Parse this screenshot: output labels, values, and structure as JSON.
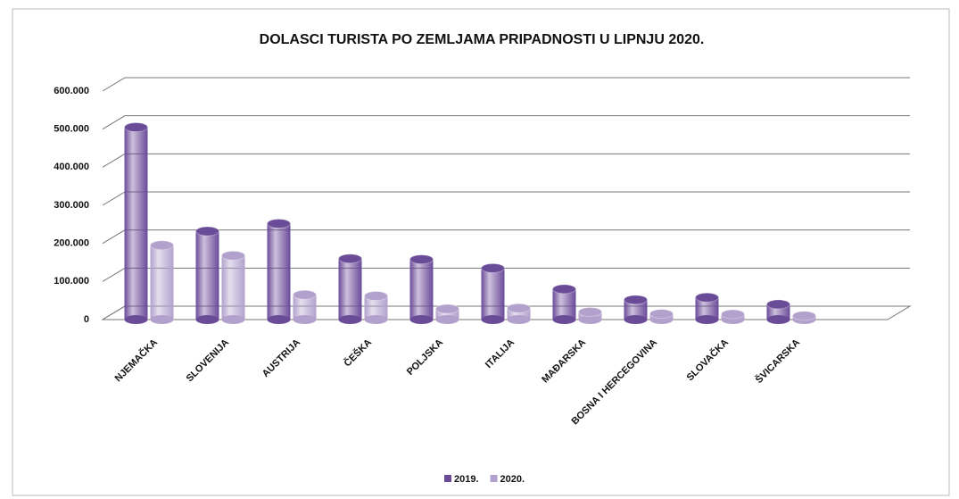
{
  "chart_data": {
    "type": "bar",
    "title": "DOLASCI TURISTA PO ZEMLJAMA PRIPADNOSTI U LIPNJU 2020.",
    "categories": [
      "NJEMAČKA",
      "SLOVENIJA",
      "AUSTRIJA",
      "ČEŠKA",
      "POLJSKA",
      "ITALIJA",
      "MAĐARSKA",
      "BOSNA I HERCEGOVINA",
      "SLOVAČKA",
      "ŠVICARSKA"
    ],
    "series": [
      {
        "name": "2019.",
        "color": "#6a4b98",
        "values": [
          505000,
          232000,
          252000,
          160000,
          158000,
          135000,
          80000,
          52000,
          58000,
          40000
        ]
      },
      {
        "name": "2020.",
        "color": "#b2a1cc",
        "values": [
          195000,
          168000,
          65000,
          62000,
          28000,
          30000,
          20000,
          15000,
          14000,
          10000
        ]
      }
    ],
    "ylim": [
      0,
      600000
    ],
    "yticks": [
      0,
      {
        "value": 100000,
        "label": "100.000"
      },
      {
        "value": 200000,
        "label": "200.000"
      },
      {
        "value": 300000,
        "label": "300.000"
      },
      {
        "value": 400000,
        "label": "400.000"
      },
      {
        "value": 500000,
        "label": "500.000"
      },
      {
        "value": 600000,
        "label": "600.000"
      }
    ],
    "grid": true,
    "legend": "bottom"
  }
}
